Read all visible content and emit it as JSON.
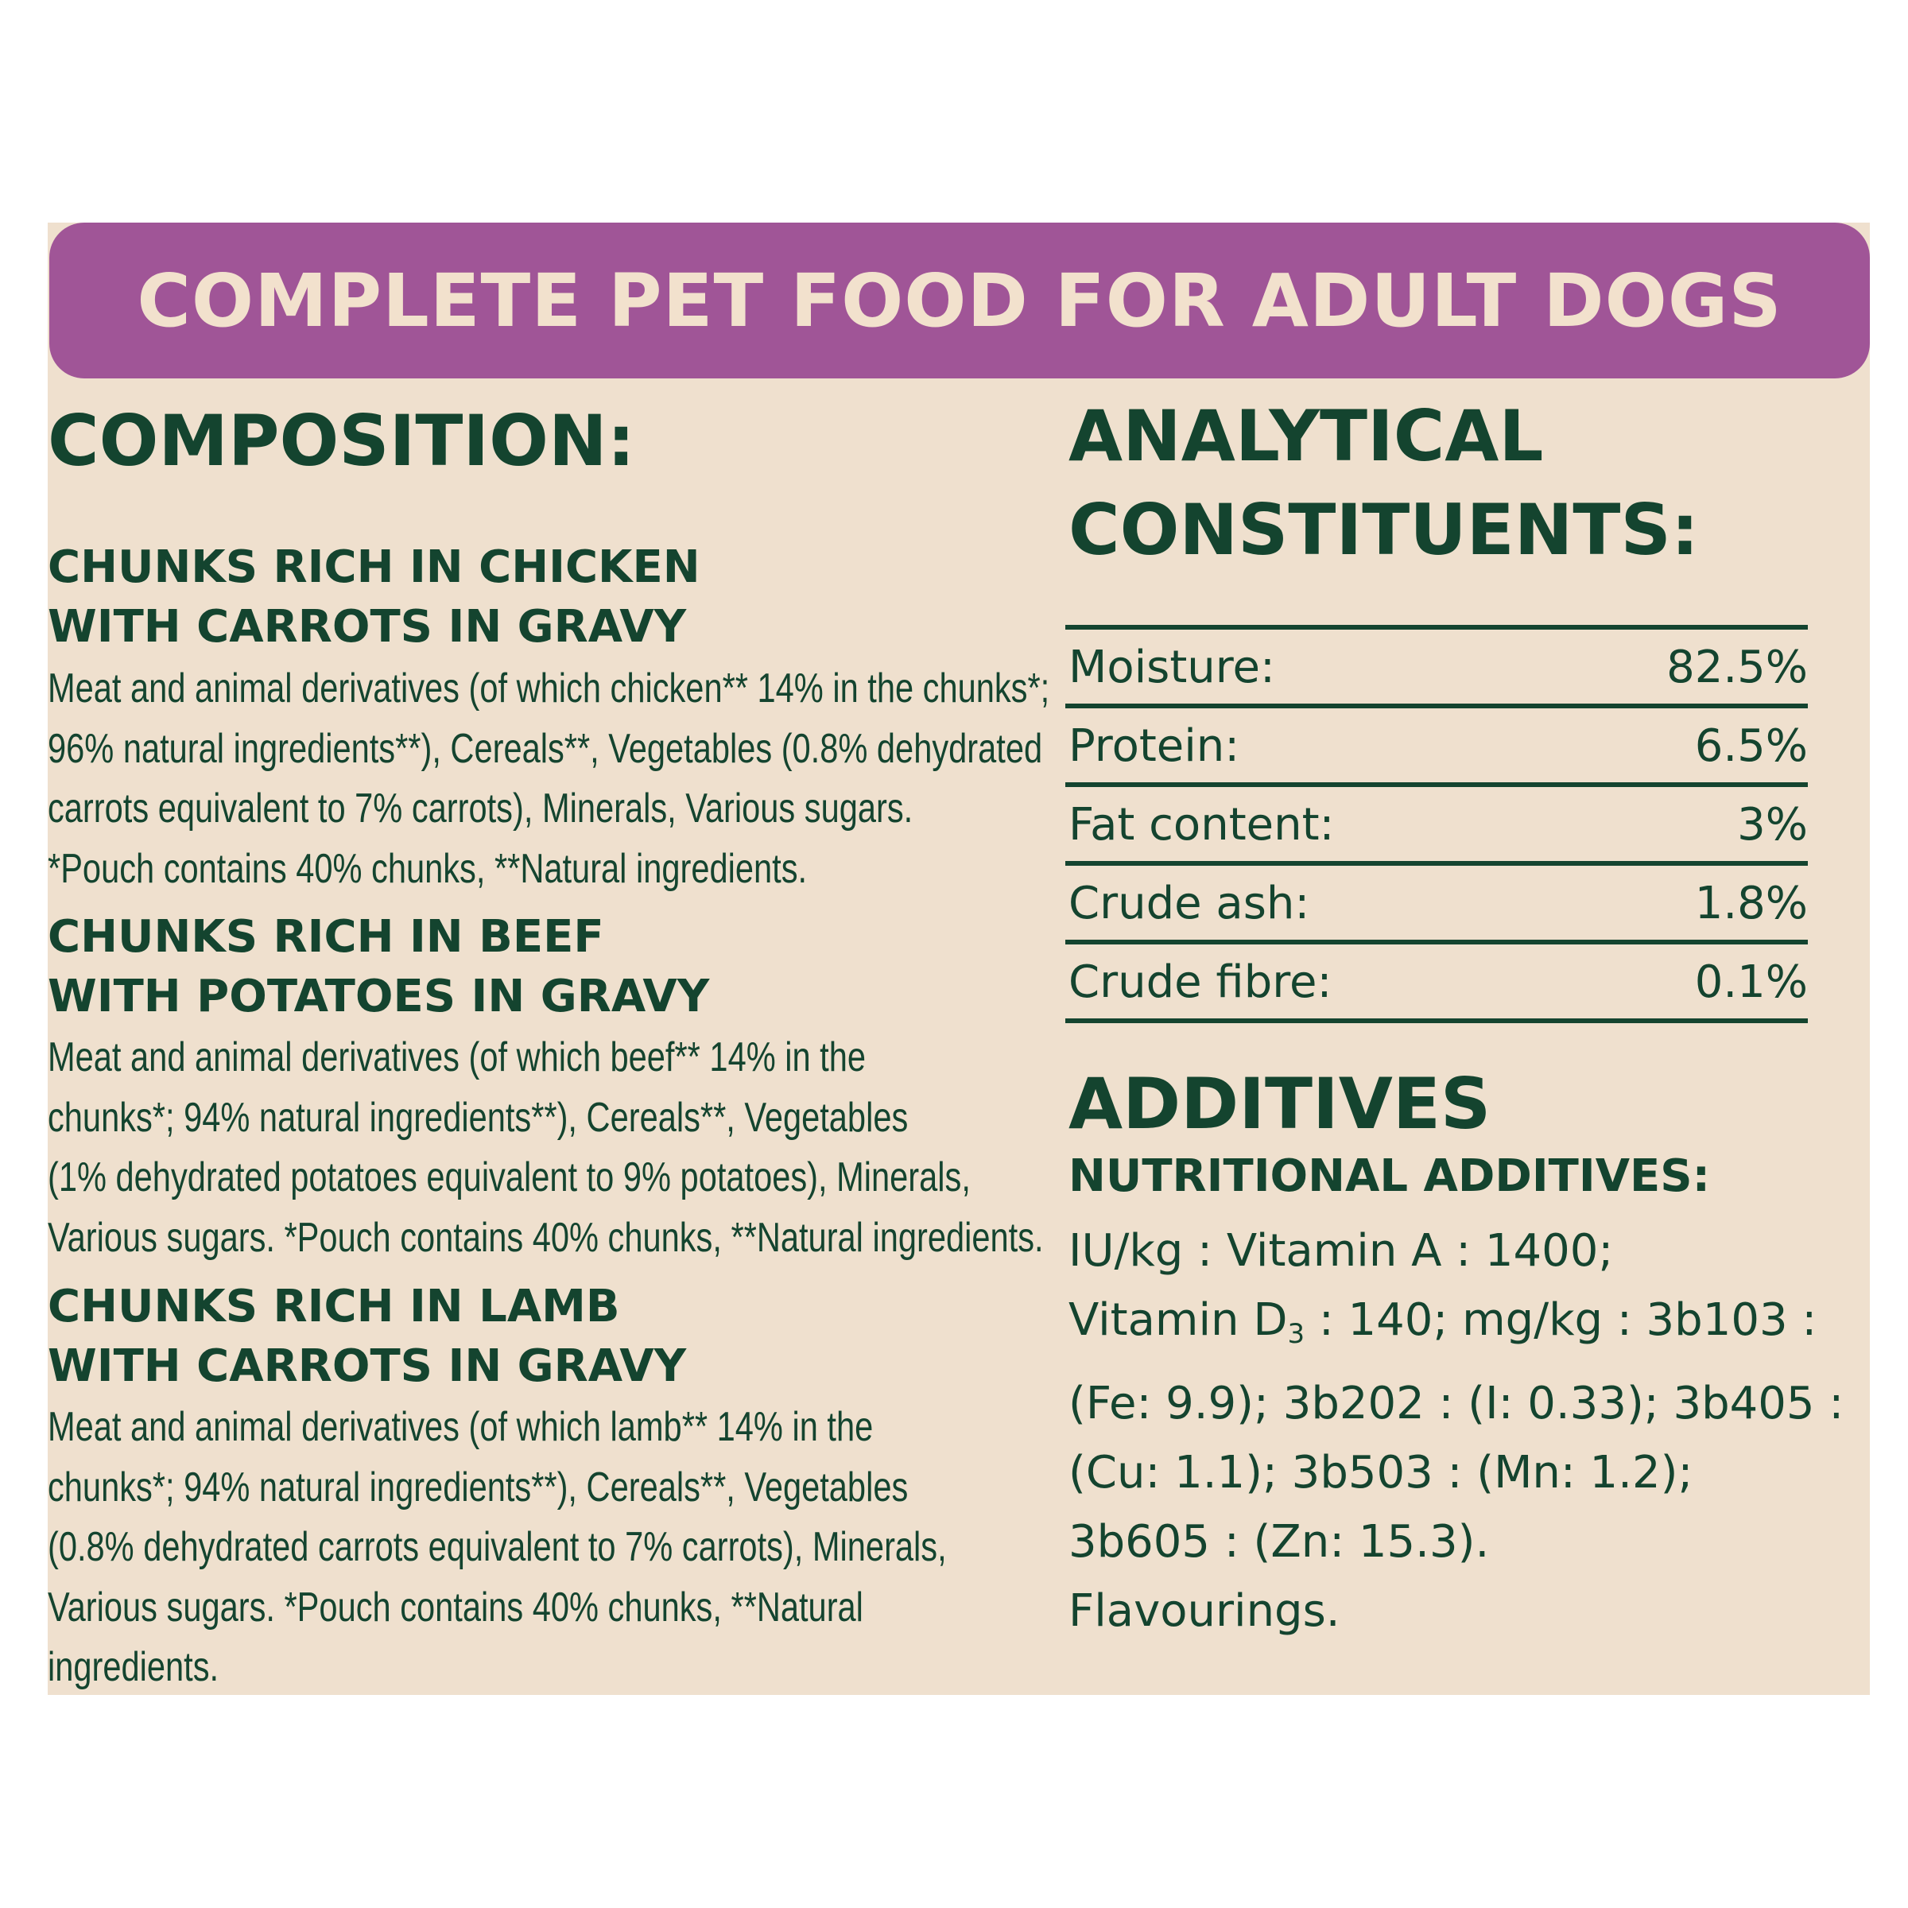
{
  "banner": {
    "title": "COMPLETE PET FOOD FOR ADULT DOGS"
  },
  "composition": {
    "heading": "COMPOSITION:",
    "variants": [
      {
        "title_lines": [
          "CHUNKS RICH IN CHICKEN",
          "WITH CARROTS IN GRAVY"
        ],
        "text_lines": [
          "Meat and animal derivatives (of which chicken** 14% in the chunks*;",
          "96% natural ingredients**), Cereals**, Vegetables (0.8% dehydrated",
          "carrots equivalent to 7% carrots), Minerals, Various sugars.",
          "*Pouch contains 40% chunks, **Natural ingredients."
        ]
      },
      {
        "title_lines": [
          "CHUNKS RICH IN BEEF",
          "WITH POTATOES IN GRAVY"
        ],
        "text_lines": [
          "Meat and animal derivatives (of which beef** 14% in the",
          "chunks*; 94% natural ingredients**), Cereals**, Vegetables",
          "(1% dehydrated potatoes equivalent to 9% potatoes), Minerals,",
          "Various sugars. *Pouch contains 40% chunks, **Natural ingredients."
        ]
      },
      {
        "title_lines": [
          "CHUNKS RICH IN LAMB",
          "WITH CARROTS IN GRAVY"
        ],
        "text_lines": [
          "Meat and animal derivatives (of which lamb** 14% in the",
          "chunks*; 94% natural ingredients**), Cereals**, Vegetables",
          "(0.8% dehydrated carrots equivalent to 7% carrots), Minerals,",
          "Various sugars. *Pouch contains 40% chunks, **Natural",
          "ingredients."
        ]
      }
    ]
  },
  "analytical": {
    "heading_lines": [
      "ANALYTICAL",
      "CONSTITUENTS:"
    ],
    "rows": [
      {
        "label": "Moisture:",
        "value": "82.5%"
      },
      {
        "label": "Protein:",
        "value": "6.5%"
      },
      {
        "label": "Fat content:",
        "value": "3%"
      },
      {
        "label": "Crude ash:",
        "value": "1.8%"
      },
      {
        "label": "Crude fibre:",
        "value": "0.1%"
      }
    ]
  },
  "additives": {
    "heading": "ADDITIVES",
    "subheading": "NUTRITIONAL ADDITIVES:",
    "line1": "IU/kg : Vitamin A : 1400;",
    "line2_pre": "Vitamin D",
    "line2_sub": "3",
    "line2_post": " : 140; mg/kg : 3b103 :",
    "line3": "(Fe: 9.9); 3b202 : (I: 0.33); 3b405 :",
    "line4": "(Cu: 1.1); 3b503 : (Mn: 1.2);",
    "line5": "3b605 : (Zn: 15.3).",
    "line6": "Flavourings."
  },
  "colors": {
    "banner": "#a05597",
    "banner_text": "#f2e1cd",
    "panel": "#efe0ce",
    "text": "#14442f"
  }
}
